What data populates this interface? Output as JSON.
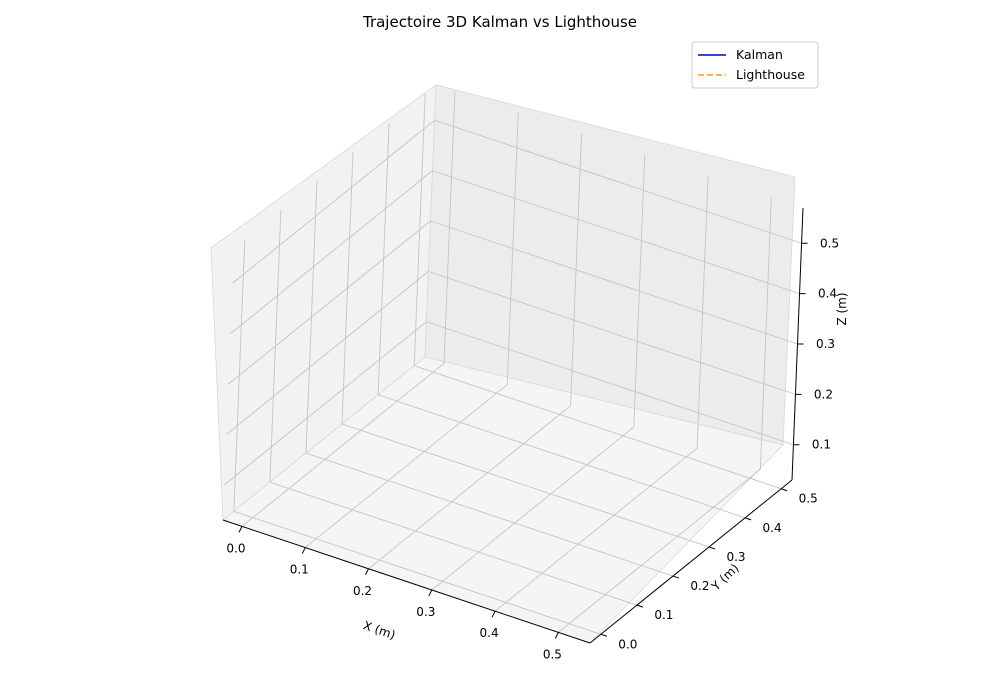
{
  "chart_data": {
    "type": "line",
    "projection": "3d",
    "title": "Trajectoire 3D Kalman vs Lighthouse",
    "xlabel": "X (m)",
    "ylabel": "Y (m)",
    "zlabel": "Z (m)",
    "xlim": [
      -0.03,
      0.55
    ],
    "ylim": [
      -0.03,
      0.53
    ],
    "zlim": [
      0.03,
      0.57
    ],
    "xticks": [
      "0.0",
      "0.1",
      "0.2",
      "0.3",
      "0.4",
      "0.5"
    ],
    "yticks": [
      "0.0",
      "0.1",
      "0.2",
      "0.3",
      "0.4",
      "0.5"
    ],
    "zticks": [
      "0.1",
      "0.2",
      "0.3",
      "0.4",
      "0.5"
    ],
    "grid": true,
    "legend_position": "top-right",
    "series": [
      {
        "name": "Kalman",
        "color": "#0000cc",
        "linestyle": "solid",
        "x": [],
        "y": [],
        "z": []
      },
      {
        "name": "Lighthouse",
        "color": "#ff9900",
        "linestyle": "dashed",
        "x": [],
        "y": [],
        "z": []
      }
    ]
  }
}
